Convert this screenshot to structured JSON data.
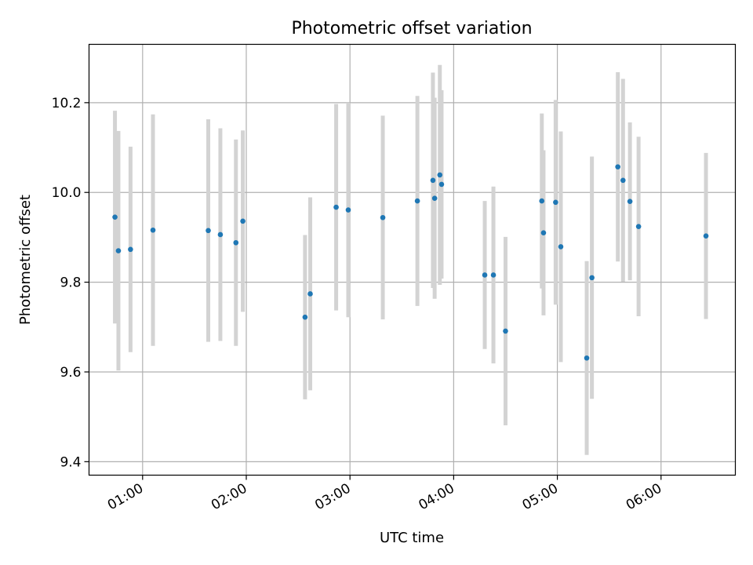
{
  "chart_data": {
    "type": "scatter",
    "title": "Photometric offset variation",
    "xlabel": "UTC time",
    "ylabel": "Photometric offset",
    "x_ticks": [
      "01:00",
      "02:00",
      "03:00",
      "04:00",
      "05:00",
      "06:00"
    ],
    "y_ticks": [
      "9.4",
      "9.6",
      "9.8",
      "10.0",
      "10.2"
    ],
    "xlim": [
      "00:29",
      "06:43"
    ],
    "ylim": [
      9.37,
      10.33
    ],
    "grid": true,
    "colors": {
      "points": "#1f77b4",
      "errorbars": "#d3d3d3",
      "grid": "#b0b0b0"
    },
    "points": [
      {
        "x": "00:44",
        "y": 9.945,
        "err": 0.237
      },
      {
        "x": "00:46",
        "y": 9.87,
        "err": 0.267
      },
      {
        "x": "00:53",
        "y": 9.873,
        "err": 0.229
      },
      {
        "x": "01:06",
        "y": 9.916,
        "err": 0.258
      },
      {
        "x": "01:38",
        "y": 9.915,
        "err": 0.248
      },
      {
        "x": "01:45",
        "y": 9.906,
        "err": 0.237
      },
      {
        "x": "01:54",
        "y": 9.888,
        "err": 0.23
      },
      {
        "x": "01:58",
        "y": 9.936,
        "err": 0.202
      },
      {
        "x": "02:34",
        "y": 9.722,
        "err": 0.183
      },
      {
        "x": "02:37",
        "y": 9.774,
        "err": 0.215
      },
      {
        "x": "02:52",
        "y": 9.967,
        "err": 0.23
      },
      {
        "x": "02:59",
        "y": 9.961,
        "err": 0.239
      },
      {
        "x": "03:19",
        "y": 9.944,
        "err": 0.227
      },
      {
        "x": "03:39",
        "y": 9.981,
        "err": 0.234
      },
      {
        "x": "03:48",
        "y": 10.027,
        "err": 0.24
      },
      {
        "x": "03:49",
        "y": 9.987,
        "err": 0.224
      },
      {
        "x": "03:52",
        "y": 10.039,
        "err": 0.245
      },
      {
        "x": "03:53",
        "y": 10.018,
        "err": 0.21
      },
      {
        "x": "04:18",
        "y": 9.816,
        "err": 0.165
      },
      {
        "x": "04:23",
        "y": 9.816,
        "err": 0.197
      },
      {
        "x": "04:30",
        "y": 9.691,
        "err": 0.21
      },
      {
        "x": "04:51",
        "y": 9.981,
        "err": 0.195
      },
      {
        "x": "04:52",
        "y": 9.91,
        "err": 0.184
      },
      {
        "x": "04:59",
        "y": 9.978,
        "err": 0.228
      },
      {
        "x": "05:02",
        "y": 9.879,
        "err": 0.257
      },
      {
        "x": "05:17",
        "y": 9.631,
        "err": 0.216
      },
      {
        "x": "05:20",
        "y": 9.81,
        "err": 0.27
      },
      {
        "x": "05:35",
        "y": 10.057,
        "err": 0.211
      },
      {
        "x": "05:38",
        "y": 10.027,
        "err": 0.226
      },
      {
        "x": "05:42",
        "y": 9.98,
        "err": 0.176
      },
      {
        "x": "05:47",
        "y": 9.924,
        "err": 0.2
      },
      {
        "x": "06:26",
        "y": 9.903,
        "err": 0.185
      }
    ]
  }
}
